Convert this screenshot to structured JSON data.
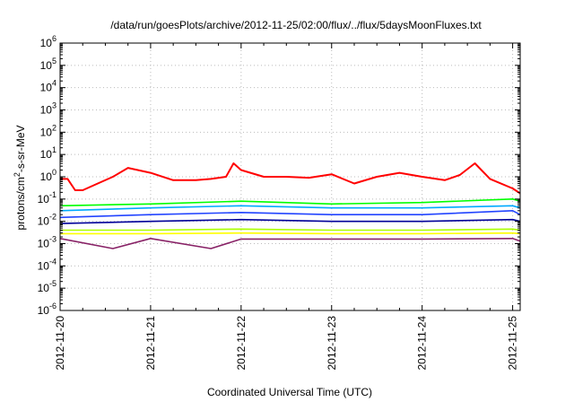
{
  "chart_data": {
    "type": "line",
    "title": "/data/run/goesPlots/archive/2012-11-25/02:00/flux/../flux/5daysMoonFluxes.txt",
    "xlabel": "Coordinated Universal Time (UTC)",
    "ylabel_parts": [
      "protons/cm",
      "2",
      "-s-sr-MeV"
    ],
    "y_scale": "log",
    "ylim": [
      1e-06,
      1000000.0
    ],
    "y_ticks": [
      {
        "base": "10",
        "exp": "-6",
        "value": 1e-06
      },
      {
        "base": "10",
        "exp": "-5",
        "value": 1e-05
      },
      {
        "base": "10",
        "exp": "-4",
        "value": 0.0001
      },
      {
        "base": "10",
        "exp": "-3",
        "value": 0.001
      },
      {
        "base": "10",
        "exp": "-2",
        "value": 0.01
      },
      {
        "base": "10",
        "exp": "-1",
        "value": 0.1
      },
      {
        "base": "10",
        "exp": "0",
        "value": 1
      },
      {
        "base": "10",
        "exp": "1",
        "value": 10
      },
      {
        "base": "10",
        "exp": "2",
        "value": 100
      },
      {
        "base": "10",
        "exp": "3",
        "value": 1000
      },
      {
        "base": "10",
        "exp": "4",
        "value": 10000
      },
      {
        "base": "10",
        "exp": "5",
        "value": 100000
      },
      {
        "base": "10",
        "exp": "6",
        "value": 1000000
      }
    ],
    "x_ticks": [
      "2012-11-20",
      "2012-11-21",
      "2012-11-22",
      "2012-11-23",
      "2012-11-24",
      "2012-11-25"
    ],
    "x_range_days": [
      "2012-11-20",
      "2012-11-25 02:00"
    ],
    "grid": true,
    "legend": "none",
    "series": [
      {
        "color": "#ff0000",
        "x": [
          "2012-11-20 00:00",
          "2012-11-20 02:00",
          "2012-11-20 04:00",
          "2012-11-20 06:00",
          "2012-11-20 10:00",
          "2012-11-20 14:00",
          "2012-11-20 18:00",
          "2012-11-21 00:00",
          "2012-11-21 06:00",
          "2012-11-21 12:00",
          "2012-11-21 16:00",
          "2012-11-21 20:00",
          "2012-11-21 22:00",
          "2012-11-22 00:00",
          "2012-11-22 06:00",
          "2012-11-22 12:00",
          "2012-11-22 18:00",
          "2012-11-23 00:00",
          "2012-11-23 06:00",
          "2012-11-23 12:00",
          "2012-11-23 18:00",
          "2012-11-24 00:00",
          "2012-11-24 06:00",
          "2012-11-24 10:00",
          "2012-11-24 14:00",
          "2012-11-24 18:00",
          "2012-11-25 00:00",
          "2012-11-25 02:00"
        ],
        "y": [
          0.8,
          0.8,
          0.25,
          0.25,
          0.5,
          1.0,
          2.5,
          1.5,
          0.7,
          0.7,
          0.8,
          1.0,
          4.0,
          2.0,
          1.0,
          1.0,
          0.9,
          1.3,
          0.5,
          1.0,
          1.5,
          1.0,
          0.7,
          1.2,
          4.0,
          0.8,
          0.3,
          0.18
        ]
      },
      {
        "color": "#00ff00",
        "x": [
          "2012-11-20 00:00",
          "2012-11-21 00:00",
          "2012-11-22 00:00",
          "2012-11-23 00:00",
          "2012-11-24 00:00",
          "2012-11-25 00:00",
          "2012-11-25 02:00"
        ],
        "y": [
          0.05,
          0.06,
          0.08,
          0.06,
          0.07,
          0.1,
          0.08
        ]
      },
      {
        "color": "#00aaff",
        "x": [
          "2012-11-20 00:00",
          "2012-11-21 00:00",
          "2012-11-22 00:00",
          "2012-11-23 00:00",
          "2012-11-24 00:00",
          "2012-11-25 00:00",
          "2012-11-25 02:00"
        ],
        "y": [
          0.03,
          0.04,
          0.05,
          0.04,
          0.04,
          0.05,
          0.04
        ]
      },
      {
        "color": "#2244ff",
        "x": [
          "2012-11-20 00:00",
          "2012-11-21 00:00",
          "2012-11-22 00:00",
          "2012-11-23 00:00",
          "2012-11-24 00:00",
          "2012-11-25 00:00",
          "2012-11-25 02:00"
        ],
        "y": [
          0.015,
          0.02,
          0.025,
          0.02,
          0.02,
          0.03,
          0.02
        ]
      },
      {
        "color": "#000099",
        "x": [
          "2012-11-20 00:00",
          "2012-11-21 00:00",
          "2012-11-22 00:00",
          "2012-11-23 00:00",
          "2012-11-24 00:00",
          "2012-11-25 00:00",
          "2012-11-25 02:00"
        ],
        "y": [
          0.008,
          0.01,
          0.012,
          0.01,
          0.01,
          0.012,
          0.01
        ]
      },
      {
        "color": "#aaff00",
        "x": [
          "2012-11-20 00:00",
          "2012-11-21 00:00",
          "2012-11-22 00:00",
          "2012-11-23 00:00",
          "2012-11-24 00:00",
          "2012-11-25 00:00",
          "2012-11-25 02:00"
        ],
        "y": [
          0.004,
          0.004,
          0.0045,
          0.004,
          0.004,
          0.0045,
          0.004
        ]
      },
      {
        "color": "#ffff00",
        "x": [
          "2012-11-20 00:00",
          "2012-11-21 00:00",
          "2012-11-22 00:00",
          "2012-11-23 00:00",
          "2012-11-24 00:00",
          "2012-11-25 00:00",
          "2012-11-25 02:00"
        ],
        "y": [
          0.0028,
          0.0028,
          0.003,
          0.0028,
          0.0028,
          0.003,
          0.0028
        ]
      },
      {
        "color": "#882266",
        "x": [
          "2012-11-20 00:00",
          "2012-11-20 14:00",
          "2012-11-21 00:00",
          "2012-11-21 16:00",
          "2012-11-22 00:00",
          "2012-11-23 00:00",
          "2012-11-24 00:00",
          "2012-11-25 00:00",
          "2012-11-25 02:00"
        ],
        "y": [
          0.0017,
          0.0006,
          0.0017,
          0.0006,
          0.0016,
          0.0016,
          0.0016,
          0.0017,
          0.0013
        ]
      }
    ]
  }
}
